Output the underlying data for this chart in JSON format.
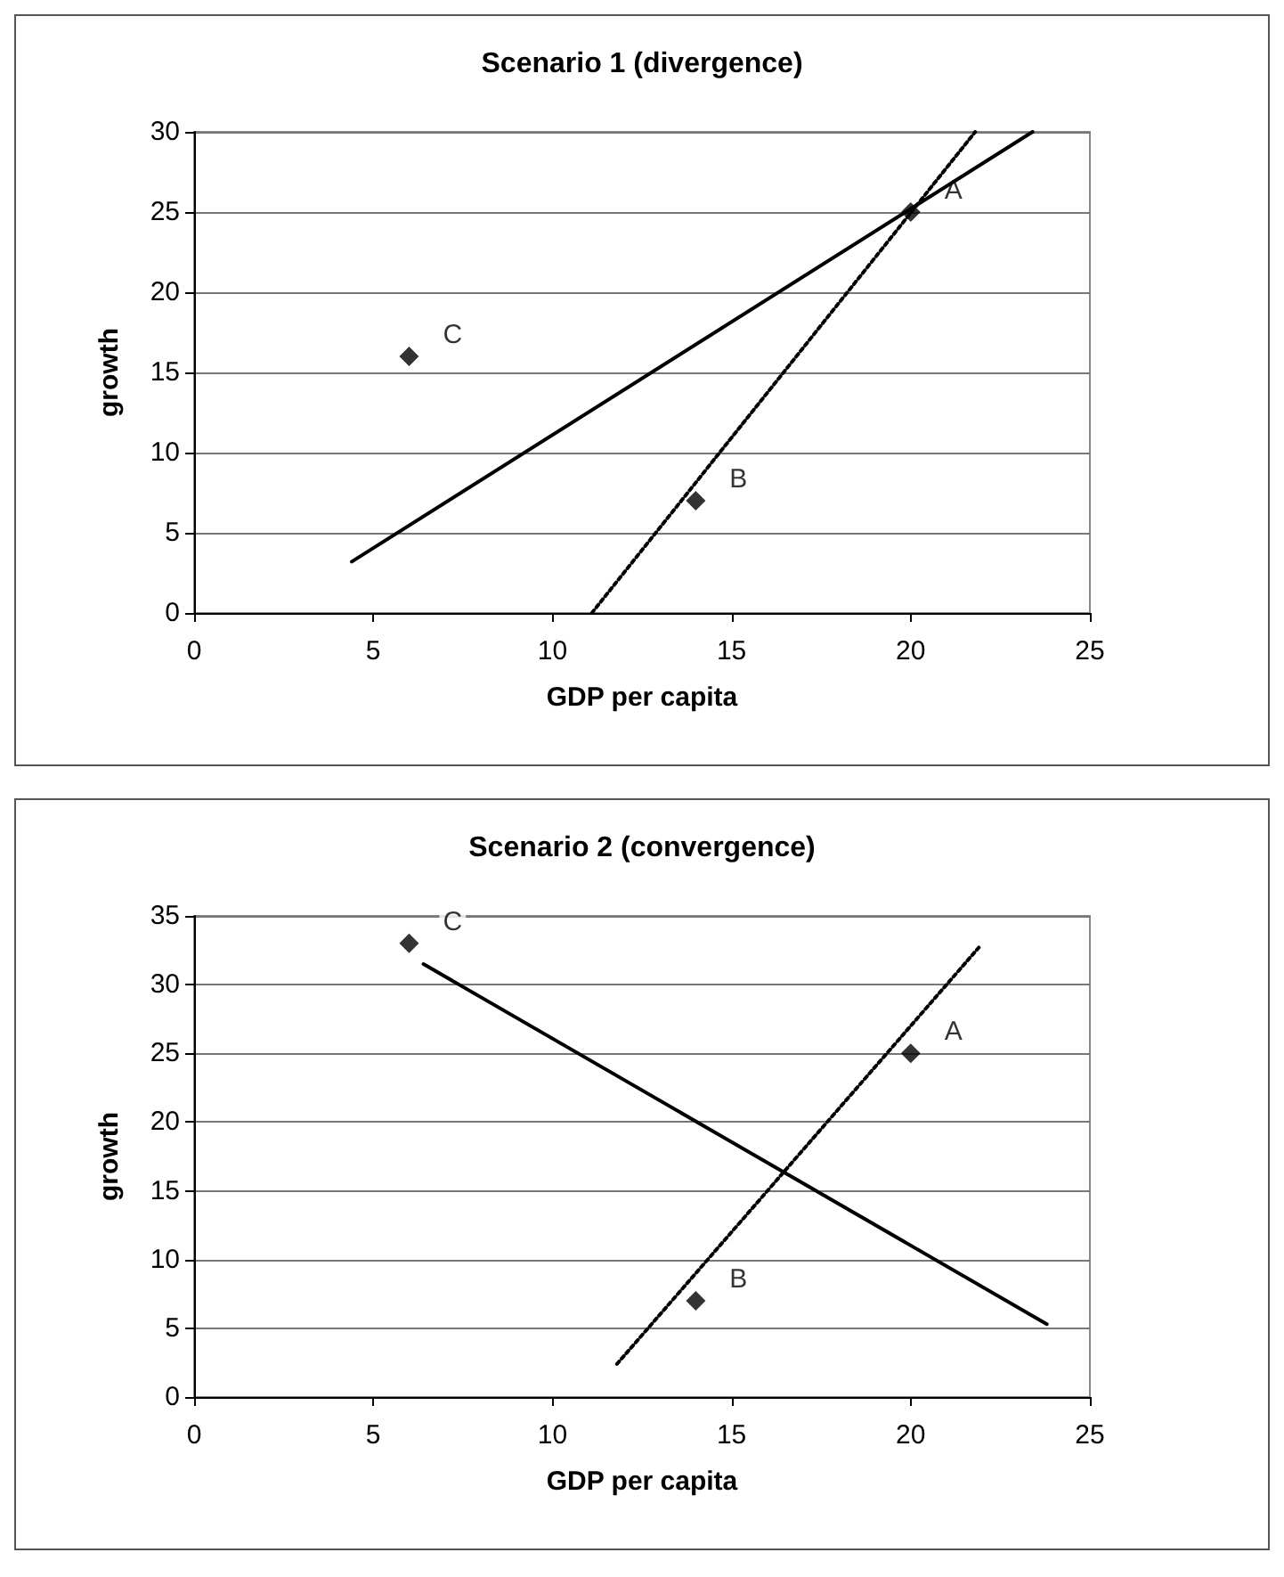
{
  "chart_data": [
    {
      "type": "scatter",
      "title": "Scenario 1 (divergence)",
      "xlabel": "GDP per capita",
      "ylabel": "growth",
      "xlim": [
        0,
        25
      ],
      "ylim": [
        0,
        30
      ],
      "xticks": [
        0,
        5,
        10,
        15,
        20,
        25
      ],
      "yticks": [
        0,
        5,
        10,
        15,
        20,
        25,
        30
      ],
      "grid": "y",
      "series": [
        {
          "type": "scatter",
          "x": [
            20,
            14,
            6
          ],
          "values": [
            25,
            7,
            16
          ],
          "color": "#000000",
          "marker": "diamond"
        },
        {
          "type": "line",
          "x": [
            4.4,
            23.4
          ],
          "values": [
            3.2,
            30
          ],
          "color": "#000000",
          "line_style": "solid",
          "marker": "none"
        },
        {
          "type": "line",
          "x": [
            11.1,
            21.8
          ],
          "values": [
            0,
            30
          ],
          "color": "#000000",
          "line_style": "dotted",
          "marker": "none"
        }
      ],
      "annotations": [
        {
          "text": "A",
          "x": 20,
          "y": 25
        },
        {
          "text": "B",
          "x": 14,
          "y": 7
        },
        {
          "text": "C",
          "x": 6,
          "y": 16
        }
      ]
    },
    {
      "type": "scatter",
      "title": "Scenario 2 (convergence)",
      "xlabel": "GDP per capita",
      "ylabel": "growth",
      "xlim": [
        0,
        25
      ],
      "ylim": [
        0,
        35
      ],
      "xticks": [
        0,
        5,
        10,
        15,
        20,
        25
      ],
      "yticks": [
        0,
        5,
        10,
        15,
        20,
        25,
        30,
        35
      ],
      "grid": "y",
      "series": [
        {
          "type": "scatter",
          "x": [
            20,
            14,
            6
          ],
          "values": [
            25,
            7,
            33
          ],
          "color": "#000000",
          "marker": "diamond"
        },
        {
          "type": "line",
          "x": [
            6.4,
            23.8
          ],
          "values": [
            31.5,
            5.3
          ],
          "color": "#000000",
          "line_style": "solid",
          "marker": "none"
        },
        {
          "type": "line",
          "x": [
            11.8,
            21.9
          ],
          "values": [
            2.4,
            32.7
          ],
          "color": "#000000",
          "line_style": "dotted",
          "marker": "none"
        }
      ],
      "annotations": [
        {
          "text": "A",
          "x": 20,
          "y": 25
        },
        {
          "text": "B",
          "x": 14,
          "y": 7
        },
        {
          "text": "C",
          "x": 6,
          "y": 33
        }
      ]
    }
  ]
}
